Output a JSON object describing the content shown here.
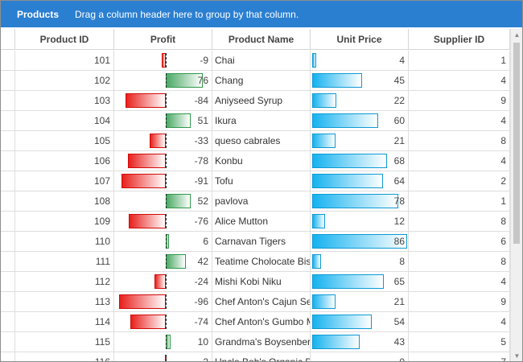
{
  "group_panel": {
    "title": "Products",
    "hint": "Drag a column header here to group by that column."
  },
  "columns": [
    "Product ID",
    "Profit",
    "Product Name",
    "Unit Price",
    "Supplier ID"
  ],
  "profit_scale": {
    "min": -100,
    "max": 100
  },
  "price_scale": {
    "max": 86
  },
  "colors": {
    "header_bar": "#2b7fd1",
    "negative_bar": "#e8201c",
    "positive_bar": "#4aa864",
    "price_bar": "#15b2ef"
  },
  "rows": [
    {
      "id": "101",
      "profit": -9,
      "name": "Chai",
      "price": 4,
      "supplier": "1"
    },
    {
      "id": "102",
      "profit": 76,
      "name": "Chang",
      "price": 45,
      "supplier": "4"
    },
    {
      "id": "103",
      "profit": -84,
      "name": "Aniyseed Syrup",
      "price": 22,
      "supplier": "9"
    },
    {
      "id": "104",
      "profit": 51,
      "name": "Ikura",
      "price": 60,
      "supplier": "4"
    },
    {
      "id": "105",
      "profit": -33,
      "name": "queso cabrales",
      "price": 21,
      "supplier": "8"
    },
    {
      "id": "106",
      "profit": -78,
      "name": "Konbu",
      "price": 68,
      "supplier": "4"
    },
    {
      "id": "107",
      "profit": -91,
      "name": "Tofu",
      "price": 64,
      "supplier": "2"
    },
    {
      "id": "108",
      "profit": 52,
      "name": "pavlova",
      "price": 78,
      "supplier": "1"
    },
    {
      "id": "109",
      "profit": -76,
      "name": "Alice Mutton",
      "price": 12,
      "supplier": "8"
    },
    {
      "id": "110",
      "profit": 6,
      "name": "Carnavan Tigers",
      "price": 86,
      "supplier": "6"
    },
    {
      "id": "111",
      "profit": 42,
      "name": "Teatime Cholocate Biscuits",
      "price": 8,
      "supplier": "8"
    },
    {
      "id": "112",
      "profit": -24,
      "name": "Mishi Kobi Niku",
      "price": 65,
      "supplier": "4"
    },
    {
      "id": "113",
      "profit": -96,
      "name": "Chef Anton's Cajun Seasoning",
      "price": 21,
      "supplier": "9"
    },
    {
      "id": "114",
      "profit": -74,
      "name": "Chef Anton's Gumbo Mix",
      "price": 54,
      "supplier": "4"
    },
    {
      "id": "115",
      "profit": 10,
      "name": "Grandma's Boysenberry Spread",
      "price": 43,
      "supplier": "5"
    },
    {
      "id": "116",
      "profit": -2,
      "name": "Uncle Bob's Organic Dried Pears",
      "price": 0,
      "supplier": "7"
    }
  ]
}
